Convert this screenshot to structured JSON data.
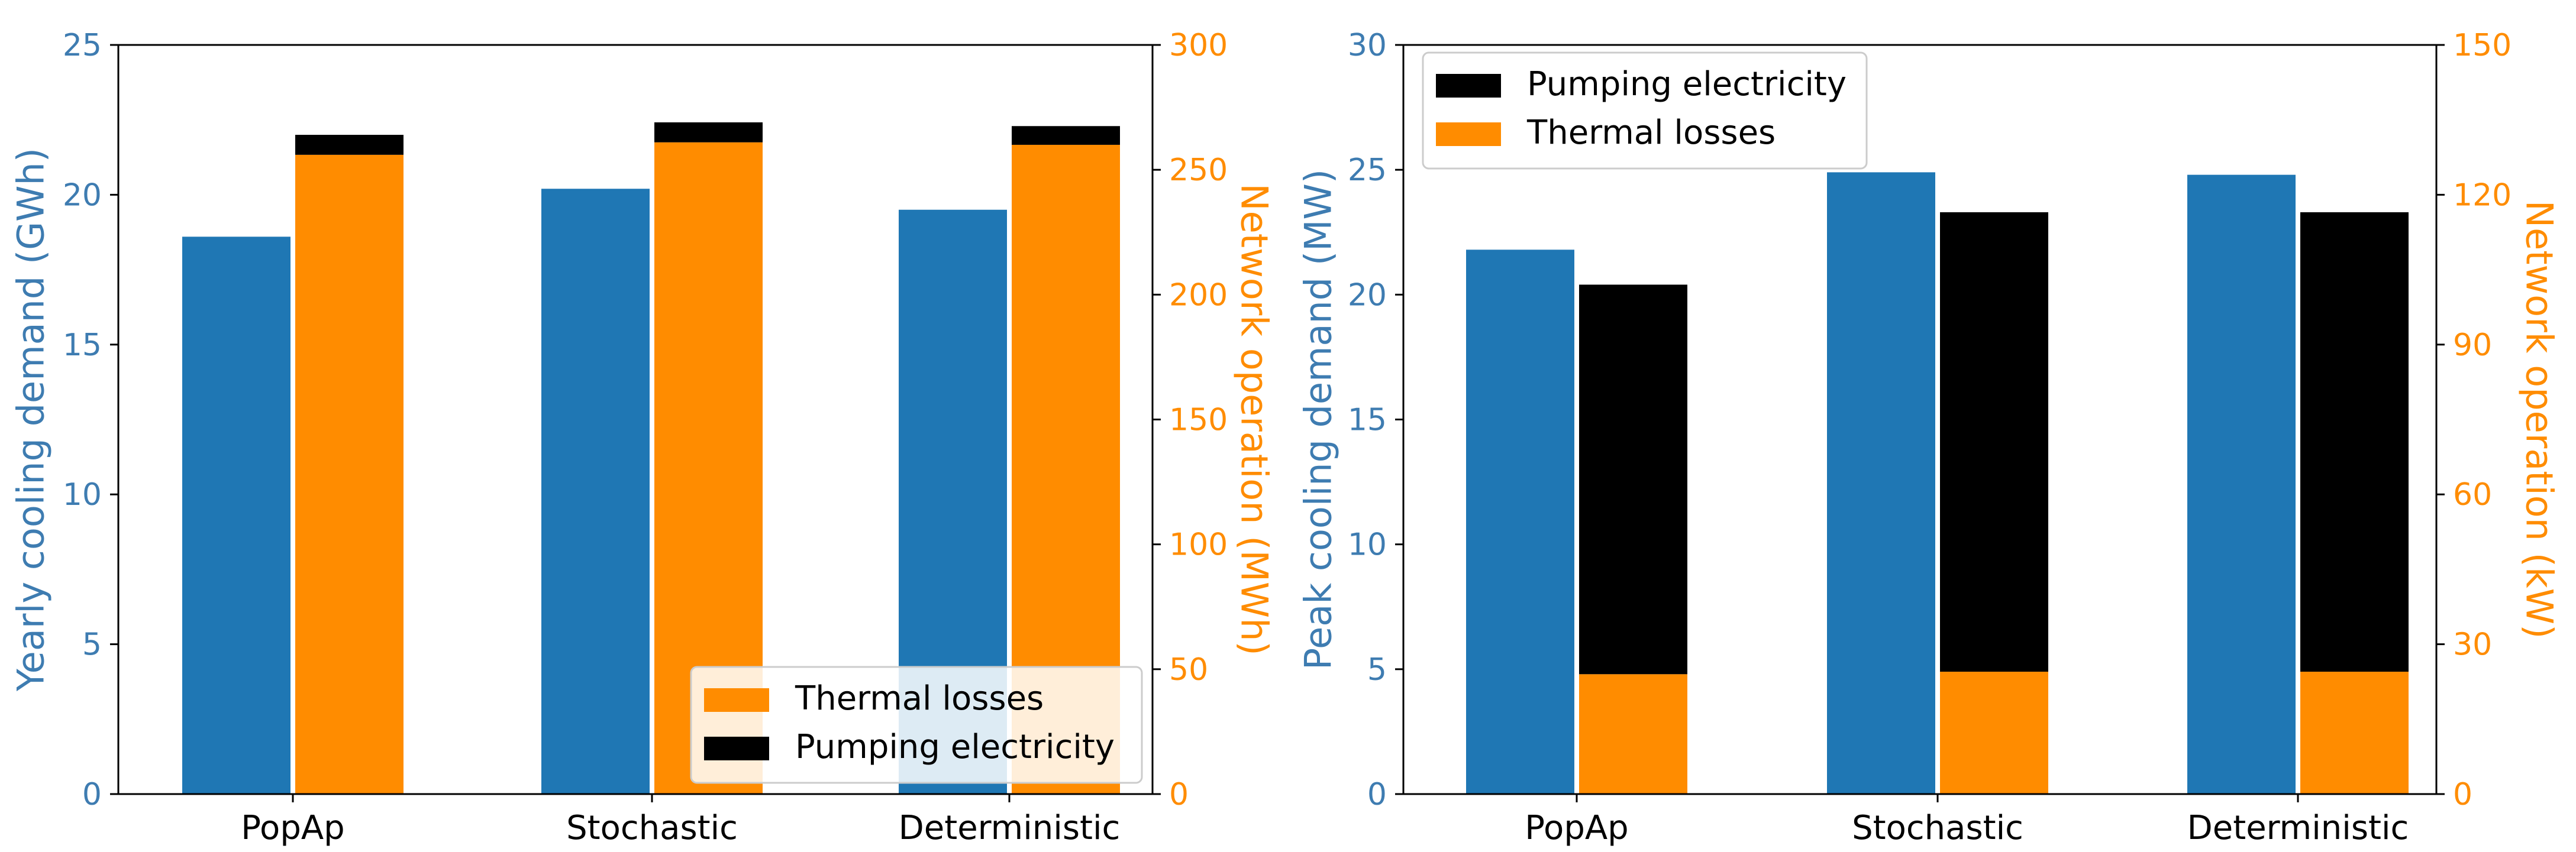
{
  "colors": {
    "demand": "#1f77b4",
    "thermal": "#ff8c00",
    "pumping": "#000000",
    "axis_right": "#ff8c00",
    "axis_left": "#3e7cb1"
  },
  "chart_data": [
    {
      "type": "bar",
      "categories": [
        "PopAp",
        "Stochastic",
        "Deterministic"
      ],
      "ylabel": "Yearly cooling demand (GWh)",
      "ylim": [
        0,
        25
      ],
      "yticks": [
        0,
        5,
        10,
        15,
        20,
        25
      ],
      "y2label": "Network operation (MWh)",
      "y2lim": [
        0,
        300
      ],
      "y2ticks": [
        0,
        50,
        100,
        150,
        200,
        250,
        300
      ],
      "series": [
        {
          "name": "Yearly cooling demand",
          "axis": "left",
          "values": [
            18.6,
            20.2,
            19.5
          ]
        },
        {
          "name": "Thermal losses",
          "axis": "right",
          "stack": "operation",
          "values": [
            256,
            261,
            260
          ]
        },
        {
          "name": "Pumping electricity",
          "axis": "right",
          "stack": "operation",
          "values": [
            8,
            8,
            7.5
          ]
        }
      ],
      "legend": {
        "position": "lower-right",
        "entries": [
          "Thermal losses",
          "Pumping electricity"
        ]
      }
    },
    {
      "type": "bar",
      "categories": [
        "PopAp",
        "Stochastic",
        "Deterministic"
      ],
      "ylabel": "Peak cooling demand (MW)",
      "ylim": [
        0,
        30
      ],
      "yticks": [
        0,
        5,
        10,
        15,
        20,
        25,
        30
      ],
      "y2label": "Network operation (kW)",
      "y2lim": [
        0,
        150
      ],
      "y2ticks": [
        0,
        30,
        60,
        90,
        120,
        150
      ],
      "series": [
        {
          "name": "Peak cooling demand",
          "axis": "left",
          "values": [
            21.8,
            24.9,
            24.8
          ]
        },
        {
          "name": "Thermal losses",
          "axis": "right",
          "stack": "operation",
          "values": [
            24,
            24.5,
            24.5
          ]
        },
        {
          "name": "Pumping electricity",
          "axis": "right",
          "stack": "operation",
          "values": [
            78,
            92,
            92
          ]
        }
      ],
      "legend": {
        "position": "upper-left",
        "entries": [
          "Pumping electricity",
          "Thermal losses"
        ]
      }
    }
  ]
}
